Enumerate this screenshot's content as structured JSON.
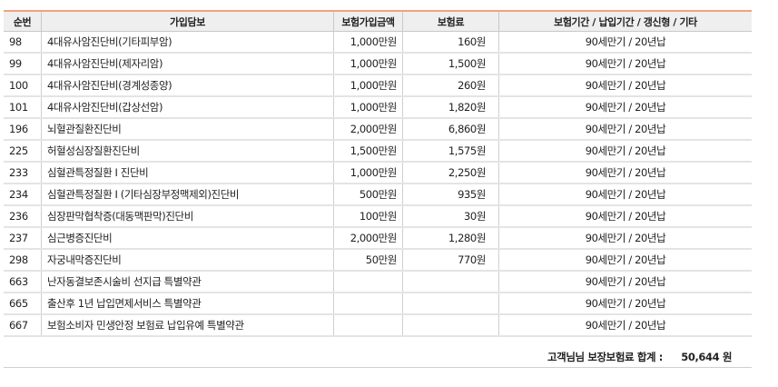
{
  "columns": [
    "순번",
    "가입담보",
    "보험가입금액",
    "보험료",
    "보험기간 / 납입기간 / 갱신형 / 기타"
  ],
  "colors": {
    "header_border": "#f3a07c",
    "header_bg": "#efefef"
  },
  "rows": [
    [
      "98",
      "4대유사암진단비(기타피부암)",
      "1,000만원",
      "160원",
      "90세만기 / 20년납"
    ],
    [
      "99",
      "4대유사암진단비(제자리암)",
      "1,000만원",
      "1,500원",
      "90세만기 / 20년납"
    ],
    [
      "100",
      "4대유사암진단비(경계성종양)",
      "1,000만원",
      "260원",
      "90세만기 / 20년납"
    ],
    [
      "101",
      "4대유사암진단비(갑상선암)",
      "1,000만원",
      "1,820원",
      "90세만기 / 20년납"
    ],
    [
      "196",
      "뇌혈관질환진단비",
      "2,000만원",
      "6,860원",
      "90세만기 / 20년납"
    ],
    [
      "225",
      "허혈성심장질환진단비",
      "1,500만원",
      "1,575원",
      "90세만기 / 20년납"
    ],
    [
      "233",
      "심혈관특정질환 I 진단비",
      "1,000만원",
      "2,250원",
      "90세만기 / 20년납"
    ],
    [
      "234",
      "심혈관특정질환 I (기타심장부정맥제외)진단비",
      "500만원",
      "935원",
      "90세만기 / 20년납"
    ],
    [
      "236",
      "심장판막협착증(대동맥판막)진단비",
      "100만원",
      "30원",
      "90세만기 / 20년납"
    ],
    [
      "237",
      "심근병증진단비",
      "2,000만원",
      "1,280원",
      "90세만기 / 20년납"
    ],
    [
      "298",
      "자궁내막증진단비",
      "50만원",
      "770원",
      "90세만기 / 20년납"
    ],
    [
      "663",
      "난자동결보존시술비 선지급 특별약관",
      "",
      "",
      "90세만기 / 20년납"
    ],
    [
      "665",
      "출산후 1년 납입면제서비스 특별약관",
      "",
      "",
      "90세만기 / 20년납"
    ],
    [
      "667",
      "보험소비자 민생안정 보험료 납입유예 특별약관",
      "",
      "",
      "90세만기 / 20년납"
    ]
  ],
  "summary": {
    "label": "고객님님 보장보험료 합계 :",
    "value": "50,644 원"
  }
}
